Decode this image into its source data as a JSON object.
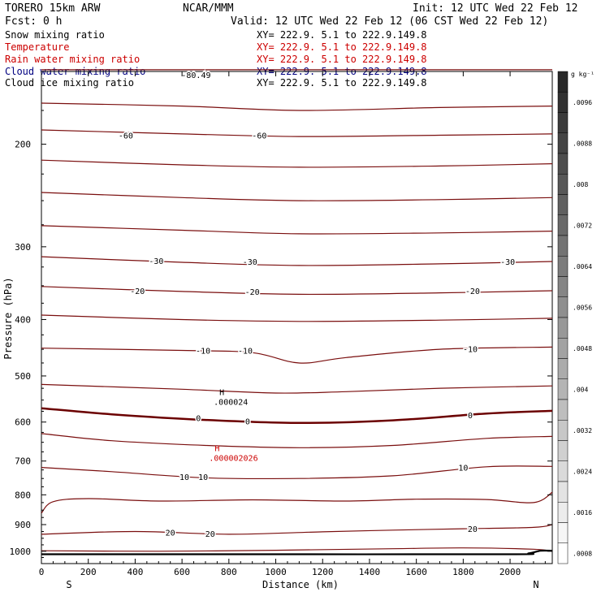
{
  "header": {
    "model": "TORERO  15km ARW",
    "center": "NCAR/MMM",
    "init": "Init: 12 UTC Wed 22 Feb 12",
    "fcst": "Fcst:    0 h",
    "valid": "Valid: 12 UTC Wed 22 Feb 12 (06 CST Wed 22 Feb 12)"
  },
  "fields": [
    {
      "label": "Snow mixing ratio",
      "xy": "XY= 222.9.  5.1 to 222.9.149.8",
      "color": "#000000"
    },
    {
      "label": "Temperature",
      "xy": "XY= 222.9.  5.1 to 222.9.149.8",
      "color": "#cc0000"
    },
    {
      "label": "Rain water mixing ratio",
      "xy": "XY= 222.9.  5.1 to 222.9.149.8",
      "color": "#cc0000"
    },
    {
      "label": "Cloud water mixing ratio",
      "xy": "XY= 222.9.  5.1 to 222.9.149.8",
      "color": "#000080"
    },
    {
      "label": "Cloud ice mixing ratio",
      "xy": "XY= 222.9.  5.1 to 222.9.149.8",
      "color": "#000000"
    }
  ],
  "colors": {
    "contour": "#7a0e0e",
    "zero_line": "#6b0000",
    "terrain": "#000000",
    "maxima_red": "#cc0000"
  },
  "chart_data": {
    "type": "contour",
    "xlabel": "Distance (km)",
    "ylabel": "Pressure (hPa)",
    "xlim": [
      0,
      2180
    ],
    "ylim": [
      1050,
      150
    ],
    "y_scale": "log-pressure",
    "x_ticks": [
      0,
      200,
      400,
      600,
      800,
      1000,
      1200,
      1400,
      1600,
      1800,
      2000
    ],
    "y_ticks": [
      200,
      300,
      400,
      500,
      600,
      700,
      800,
      900,
      1000
    ],
    "x_end_labels": {
      "left": "S",
      "right": "N"
    },
    "temperature_contours": [
      {
        "level": -80,
        "label": "-80.49",
        "x": [
          0,
          2180
        ],
        "p": [
          149,
          149
        ]
      },
      {
        "level": -70,
        "x": [
          0,
          600,
          1100,
          1700,
          2180
        ],
        "p": [
          170,
          172,
          175,
          173,
          172
        ]
      },
      {
        "level": -60,
        "x": [
          0,
          600,
          1100,
          1700,
          2180
        ],
        "p": [
          189,
          192,
          194,
          193,
          192
        ]
      },
      {
        "level": -50,
        "x": [
          0,
          600,
          1100,
          1700,
          2180
        ],
        "p": [
          213,
          217,
          219,
          218,
          216
        ]
      },
      {
        "level": -40,
        "x": [
          0,
          600,
          1100,
          1700,
          2180
        ],
        "p": [
          242,
          247,
          250,
          249,
          247
        ]
      },
      {
        "level": -30,
        "x": [
          0,
          600,
          1100,
          1700,
          2180
        ],
        "p": [
          276,
          281,
          285,
          284,
          282
        ]
      },
      {
        "level": -30,
        "x": [
          0,
          600,
          1100,
          1700,
          2180
        ],
        "p": [
          312,
          319,
          323,
          321,
          318
        ]
      },
      {
        "level": -20,
        "x": [
          0,
          600,
          1100,
          1700,
          2180
        ],
        "p": [
          351,
          358,
          362,
          360,
          357
        ]
      },
      {
        "level": -20,
        "x": [
          0,
          600,
          1100,
          1700,
          2180
        ],
        "p": [
          393,
          400,
          403,
          401,
          398
        ]
      },
      {
        "level": -10,
        "x": [
          0,
          600,
          900,
          1100,
          1300,
          1700,
          2180
        ],
        "p": [
          448,
          452,
          456,
          475,
          465,
          450,
          446
        ]
      },
      {
        "level": -10,
        "x": [
          0,
          600,
          1000,
          1300,
          1700,
          2180
        ],
        "p": [
          517,
          527,
          535,
          532,
          525,
          520
        ]
      },
      {
        "level": 0,
        "label": "0",
        "x": [
          0,
          300,
          700,
          1100,
          1500,
          1900,
          2180
        ],
        "p": [
          568,
          582,
          595,
          602,
          596,
          580,
          574
        ]
      },
      {
        "level": 0,
        "x": [
          0,
          300,
          700,
          1100,
          1500,
          1900,
          2180
        ],
        "p": [
          628,
          646,
          658,
          664,
          658,
          640,
          635
        ]
      },
      {
        "level": 10,
        "label": "10",
        "x": [
          0,
          300,
          700,
          1100,
          1500,
          1900,
          2180
        ],
        "p": [
          718,
          730,
          748,
          750,
          742,
          716,
          715
        ]
      },
      {
        "level": 10,
        "x": [
          0,
          50,
          200,
          500,
          900,
          1300,
          1600,
          1900,
          2100,
          2180
        ],
        "p": [
          860,
          822,
          812,
          820,
          816,
          820,
          814,
          815,
          825,
          792
        ]
      },
      {
        "level": 20,
        "label": "20",
        "x": [
          0,
          400,
          800,
          1200,
          1500,
          1800,
          2100,
          2180
        ],
        "p": [
          935,
          925,
          935,
          926,
          920,
          915,
          910,
          900
        ]
      },
      {
        "level": 20,
        "x": [
          0,
          500,
          1000,
          1500,
          1800,
          2100,
          2180
        ],
        "p": [
          998,
          1000,
          996,
          990,
          987,
          992,
          1000
        ]
      }
    ],
    "contour_labels": [
      {
        "text": "-80.49",
        "x": 660,
        "p": 152
      },
      {
        "text": "-60",
        "x": 360,
        "p": 193
      },
      {
        "text": "-60",
        "x": 930,
        "p": 193
      },
      {
        "text": "-30",
        "x": 490,
        "p": 317
      },
      {
        "text": "-30",
        "x": 890,
        "p": 318
      },
      {
        "text": "-30",
        "x": 1990,
        "p": 318
      },
      {
        "text": "-20",
        "x": 410,
        "p": 357
      },
      {
        "text": "-20",
        "x": 900,
        "p": 358
      },
      {
        "text": "-20",
        "x": 1840,
        "p": 357
      },
      {
        "text": "-10",
        "x": 690,
        "p": 452
      },
      {
        "text": "-10",
        "x": 870,
        "p": 452
      },
      {
        "text": "-10",
        "x": 1830,
        "p": 449
      },
      {
        "text": "0",
        "x": 670,
        "p": 590
      },
      {
        "text": "0",
        "x": 880,
        "p": 598
      },
      {
        "text": "0",
        "x": 1830,
        "p": 583
      },
      {
        "text": "10",
        "x": 610,
        "p": 745
      },
      {
        "text": "10",
        "x": 690,
        "p": 745
      },
      {
        "text": "10",
        "x": 1800,
        "p": 718
      },
      {
        "text": "20",
        "x": 550,
        "p": 928
      },
      {
        "text": "20",
        "x": 720,
        "p": 932
      },
      {
        "text": "20",
        "x": 1840,
        "p": 915
      }
    ],
    "maxima": [
      {
        "mark": "H",
        "value": ".000024",
        "x": 770,
        "p": 550,
        "color": "#000000"
      },
      {
        "mark": "H",
        "value": ".000002026",
        "x": 750,
        "p": 686,
        "color": "#cc0000"
      }
    ],
    "terrain": {
      "x": [
        0,
        1000,
        2000,
        2080,
        2130,
        2180
      ],
      "p": [
        1012,
        1012,
        1012,
        1008,
        998,
        998
      ]
    },
    "colorbar": {
      "unit": "g kg⁻¹",
      "values": [
        ".0096",
        ".0088",
        ".008",
        ".0072",
        ".0064",
        ".0056",
        ".0048",
        ".004",
        ".0032",
        ".0024",
        ".0016",
        ".0008"
      ]
    }
  }
}
